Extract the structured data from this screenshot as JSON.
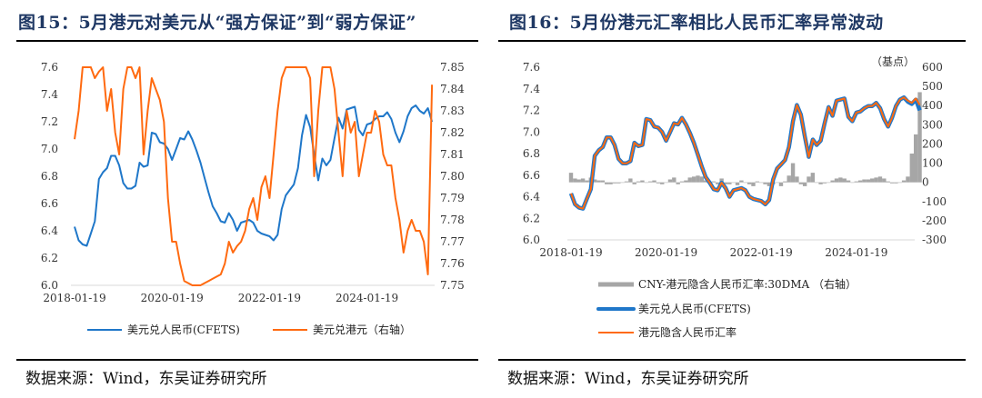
{
  "left": {
    "title": "图15：5月港元对美元从“强方保证”到“弱方保证”",
    "source": "数据来源：Wind，东吴证券研究所"
  },
  "right": {
    "title": "图16：5月份港元汇率相比人民币汇率异常波动",
    "source": "数据来源：Wind，东吴证券研究所"
  },
  "chart_data": [
    {
      "type": "line",
      "x_start": "2018-01",
      "x_step": "month",
      "x_ticks": [
        "2018-01-19",
        "2020-01-19",
        "2022-01-19",
        "2024-01-19"
      ],
      "y_left": {
        "range": [
          6.0,
          7.6
        ],
        "ticks": [
          "6.0",
          "6.2",
          "6.4",
          "6.6",
          "6.8",
          "7.0",
          "7.2",
          "7.4",
          "7.6"
        ]
      },
      "y_right": {
        "range": [
          7.75,
          7.85
        ],
        "ticks": [
          "7.75",
          "7.76",
          "7.77",
          "7.78",
          "7.79",
          "7.80",
          "7.81",
          "7.82",
          "7.83",
          "7.84",
          "7.85"
        ]
      },
      "grid": false,
      "legend_position": "bottom",
      "series": [
        {
          "name": "美元兑人民币(CFETS)",
          "axis": "left",
          "color": "#1f77c9",
          "values": [
            6.43,
            6.33,
            6.3,
            6.29,
            6.38,
            6.47,
            6.78,
            6.83,
            6.86,
            6.95,
            6.95,
            6.88,
            6.75,
            6.71,
            6.71,
            6.73,
            6.9,
            6.87,
            6.88,
            7.12,
            7.11,
            7.05,
            7.04,
            7.0,
            6.92,
            7.0,
            7.08,
            7.07,
            7.13,
            7.07,
            6.99,
            6.9,
            6.79,
            6.68,
            6.58,
            6.53,
            6.47,
            6.46,
            6.53,
            6.48,
            6.4,
            6.46,
            6.47,
            6.48,
            6.46,
            6.4,
            6.38,
            6.37,
            6.36,
            6.33,
            6.37,
            6.56,
            6.66,
            6.7,
            6.74,
            6.86,
            7.1,
            7.25,
            7.16,
            6.96,
            6.77,
            6.93,
            6.88,
            6.92,
            7.08,
            7.23,
            7.15,
            7.29,
            7.3,
            7.31,
            7.14,
            7.1,
            7.18,
            7.19,
            7.22,
            7.24,
            7.24,
            7.27,
            7.22,
            7.12,
            7.05,
            7.13,
            7.24,
            7.3,
            7.32,
            7.28,
            7.26,
            7.3,
            7.2
          ]
        },
        {
          "name": "美元兑港元（右轴）",
          "axis": "right",
          "color": "#ff6a10",
          "values": [
            7.817,
            7.83,
            7.85,
            7.85,
            7.85,
            7.845,
            7.848,
            7.85,
            7.83,
            7.84,
            7.82,
            7.81,
            7.84,
            7.85,
            7.85,
            7.845,
            7.85,
            7.81,
            7.83,
            7.845,
            7.84,
            7.835,
            7.825,
            7.79,
            7.77,
            7.77,
            7.76,
            7.752,
            7.751,
            7.75,
            7.75,
            7.75,
            7.751,
            7.752,
            7.753,
            7.754,
            7.755,
            7.76,
            7.77,
            7.765,
            7.768,
            7.77,
            7.775,
            7.785,
            7.79,
            7.78,
            7.795,
            7.8,
            7.79,
            7.81,
            7.83,
            7.845,
            7.85,
            7.85,
            7.85,
            7.85,
            7.85,
            7.85,
            7.845,
            7.8,
            7.83,
            7.85,
            7.85,
            7.85,
            7.84,
            7.82,
            7.8,
            7.83,
            7.82,
            7.825,
            7.8,
            7.81,
            7.82,
            7.82,
            7.83,
            7.825,
            7.81,
            7.805,
            7.805,
            7.79,
            7.78,
            7.765,
            7.775,
            7.78,
            7.775,
            7.775,
            7.77,
            7.755,
            7.842
          ]
        }
      ]
    },
    {
      "type": "line",
      "x_start": "2018-01",
      "x_step": "month",
      "x_ticks": [
        "2018-01-19",
        "2020-01-19",
        "2022-01-19",
        "2024-01-19"
      ],
      "y_left": {
        "range": [
          6.0,
          7.6
        ],
        "ticks": [
          "6.0",
          "6.2",
          "6.4",
          "6.6",
          "6.8",
          "7.0",
          "7.2",
          "7.4",
          "7.6"
        ]
      },
      "y_right": {
        "range": [
          -300,
          600
        ],
        "ticks": [
          "-300",
          "-200",
          "-100",
          "0",
          "100",
          "200",
          "300",
          "400",
          "500",
          "600"
        ],
        "unit": "（基点）"
      },
      "grid": false,
      "legend_position": "bottom",
      "series": [
        {
          "name": "CNY-港元隐含人民币汇率:30DMA （右轴）",
          "axis": "right",
          "kind": "bar",
          "color": "#a6a6a6",
          "values": [
            50,
            20,
            15,
            20,
            10,
            25,
            15,
            10,
            10,
            -10,
            -10,
            -5,
            -5,
            0,
            5,
            20,
            -10,
            5,
            10,
            0,
            5,
            10,
            -5,
            -10,
            0,
            15,
            25,
            -10,
            5,
            10,
            25,
            30,
            35,
            30,
            10,
            0,
            5,
            -10,
            20,
            -10,
            -10,
            0,
            -15,
            10,
            0,
            -10,
            -20,
            5,
            0,
            -10,
            -20,
            -10,
            0,
            -20,
            5,
            35,
            100,
            30,
            -10,
            -20,
            30,
            50,
            0,
            -10,
            -5,
            0,
            10,
            20,
            25,
            20,
            10,
            0,
            5,
            10,
            15,
            15,
            20,
            25,
            30,
            20,
            5,
            -5,
            -5,
            0,
            10,
            30,
            150,
            250,
            470
          ]
        },
        {
          "name": "美元兑人民币(CFETS)",
          "axis": "left",
          "kind": "line",
          "color": "#1f77c9",
          "values": [
            6.43,
            6.33,
            6.3,
            6.29,
            6.38,
            6.47,
            6.78,
            6.83,
            6.86,
            6.95,
            6.95,
            6.88,
            6.75,
            6.71,
            6.71,
            6.73,
            6.9,
            6.87,
            6.88,
            7.12,
            7.11,
            7.05,
            7.04,
            7.0,
            6.92,
            7.0,
            7.08,
            7.07,
            7.13,
            7.07,
            6.99,
            6.9,
            6.79,
            6.68,
            6.58,
            6.53,
            6.47,
            6.46,
            6.53,
            6.48,
            6.4,
            6.46,
            6.47,
            6.48,
            6.46,
            6.4,
            6.38,
            6.37,
            6.36,
            6.33,
            6.37,
            6.56,
            6.66,
            6.7,
            6.74,
            6.86,
            7.1,
            7.25,
            7.16,
            6.96,
            6.77,
            6.93,
            6.88,
            6.92,
            7.08,
            7.23,
            7.15,
            7.29,
            7.3,
            7.31,
            7.14,
            7.1,
            7.18,
            7.19,
            7.22,
            7.24,
            7.24,
            7.27,
            7.22,
            7.12,
            7.05,
            7.13,
            7.24,
            7.3,
            7.32,
            7.28,
            7.26,
            7.3,
            7.2
          ]
        },
        {
          "name": "港元隐含人民币汇率",
          "axis": "left",
          "kind": "line",
          "color": "#ff6a10",
          "values": [
            6.43,
            6.33,
            6.3,
            6.29,
            6.38,
            6.47,
            6.78,
            6.83,
            6.86,
            6.95,
            6.95,
            6.88,
            6.75,
            6.71,
            6.71,
            6.73,
            6.9,
            6.87,
            6.88,
            7.12,
            7.11,
            7.05,
            7.04,
            7.0,
            6.92,
            7.0,
            7.08,
            7.07,
            7.13,
            7.07,
            6.99,
            6.9,
            6.79,
            6.68,
            6.58,
            6.53,
            6.47,
            6.46,
            6.53,
            6.48,
            6.4,
            6.46,
            6.47,
            6.48,
            6.46,
            6.4,
            6.38,
            6.37,
            6.36,
            6.33,
            6.37,
            6.56,
            6.66,
            6.7,
            6.74,
            6.86,
            7.1,
            7.25,
            7.16,
            6.96,
            6.77,
            6.93,
            6.88,
            6.92,
            7.08,
            7.23,
            7.15,
            7.29,
            7.3,
            7.31,
            7.14,
            7.1,
            7.18,
            7.19,
            7.22,
            7.24,
            7.24,
            7.27,
            7.22,
            7.12,
            7.05,
            7.13,
            7.24,
            7.3,
            7.32,
            7.29,
            7.27,
            7.31,
            7.25
          ]
        }
      ]
    }
  ]
}
